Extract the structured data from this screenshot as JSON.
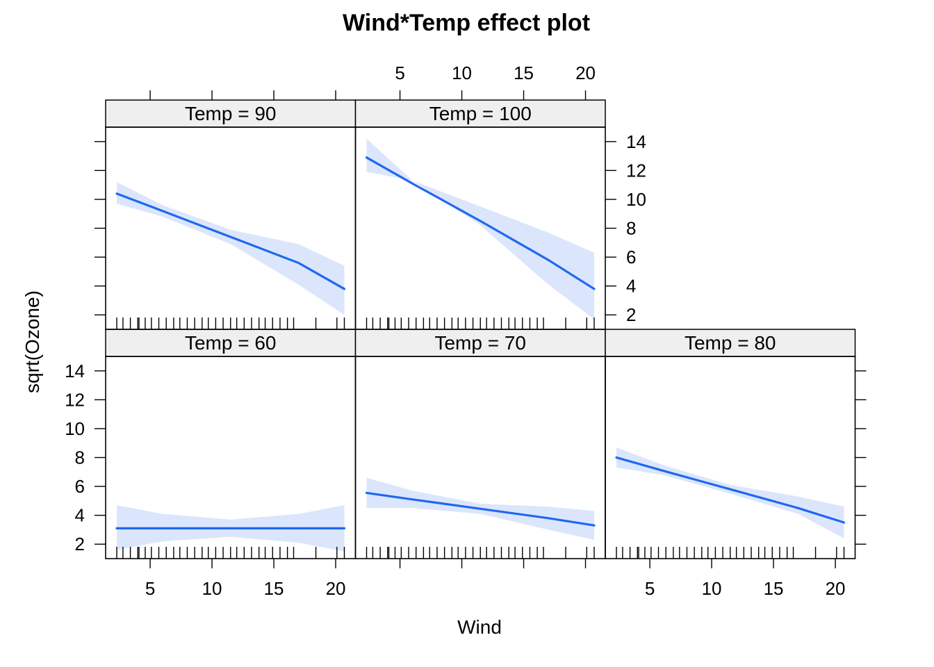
{
  "chart_data": {
    "type": "line",
    "title": "Wind*Temp effect plot",
    "xlabel": "Wind",
    "ylabel": "sqrt(Ozone)",
    "xlim": [
      1.4,
      21.6
    ],
    "ylim": [
      1,
      15
    ],
    "x_ticks": [
      5,
      10,
      15,
      20
    ],
    "y_ticks": [
      2,
      4,
      6,
      8,
      10,
      12,
      14
    ],
    "x_range": [
      2.3,
      20.7
    ],
    "band_color": "#dbe6fd",
    "line_color": "#1f68ef",
    "strip_color": "#efefef",
    "rug": [
      2.3,
      2.8,
      3.4,
      4.0,
      4.1,
      4.6,
      5.1,
      5.7,
      6.3,
      6.9,
      7.4,
      8.0,
      8.6,
      9.2,
      9.7,
      10.3,
      10.9,
      11.5,
      12.0,
      12.6,
      13.2,
      13.8,
      14.3,
      14.9,
      15.5,
      16.1,
      16.6,
      18.4,
      20.1,
      20.7
    ],
    "panels": [
      {
        "strip": "Temp = 60",
        "row": 0,
        "col": 0,
        "x": [
          2.3,
          6,
          11.5,
          17,
          20.7
        ],
        "fit": [
          3.1,
          3.1,
          3.1,
          3.1,
          3.1
        ],
        "lower": [
          1.6,
          2.2,
          2.5,
          2.1,
          1.5
        ],
        "upper": [
          4.7,
          4.1,
          3.7,
          4.1,
          4.7
        ]
      },
      {
        "strip": "Temp = 70",
        "row": 0,
        "col": 1,
        "x": [
          2.3,
          6,
          11.5,
          17,
          20.7
        ],
        "fit": [
          5.55,
          5.1,
          4.45,
          3.8,
          3.3
        ],
        "lower": [
          4.5,
          4.5,
          4.1,
          3.0,
          2.3
        ],
        "upper": [
          6.6,
          5.7,
          4.8,
          4.6,
          4.3
        ]
      },
      {
        "strip": "Temp = 80",
        "row": 0,
        "col": 2,
        "x": [
          2.3,
          6,
          11.5,
          17,
          20.7
        ],
        "fit": [
          8.0,
          7.1,
          5.8,
          4.5,
          3.5
        ],
        "lower": [
          7.3,
          6.8,
          5.5,
          4.1,
          2.4
        ],
        "upper": [
          8.7,
          7.5,
          6.1,
          5.3,
          4.6
        ]
      },
      {
        "strip": "Temp = 90",
        "row": 1,
        "col": 0,
        "x": [
          2.3,
          6,
          11.5,
          17,
          20.7
        ],
        "fit": [
          10.4,
          9.2,
          7.4,
          5.6,
          3.8
        ],
        "lower": [
          9.7,
          8.8,
          6.9,
          4.1,
          2.0
        ],
        "upper": [
          11.2,
          9.6,
          7.9,
          6.9,
          5.4
        ]
      },
      {
        "strip": "Temp = 100",
        "row": 1,
        "col": 1,
        "x": [
          2.3,
          6,
          11.5,
          17,
          20.7
        ],
        "fit": [
          12.9,
          11.1,
          8.5,
          5.8,
          3.8
        ],
        "lower": [
          11.9,
          11.3,
          8.2,
          4.1,
          1.7
        ],
        "upper": [
          14.2,
          11.3,
          9.5,
          7.7,
          6.3
        ]
      }
    ]
  }
}
